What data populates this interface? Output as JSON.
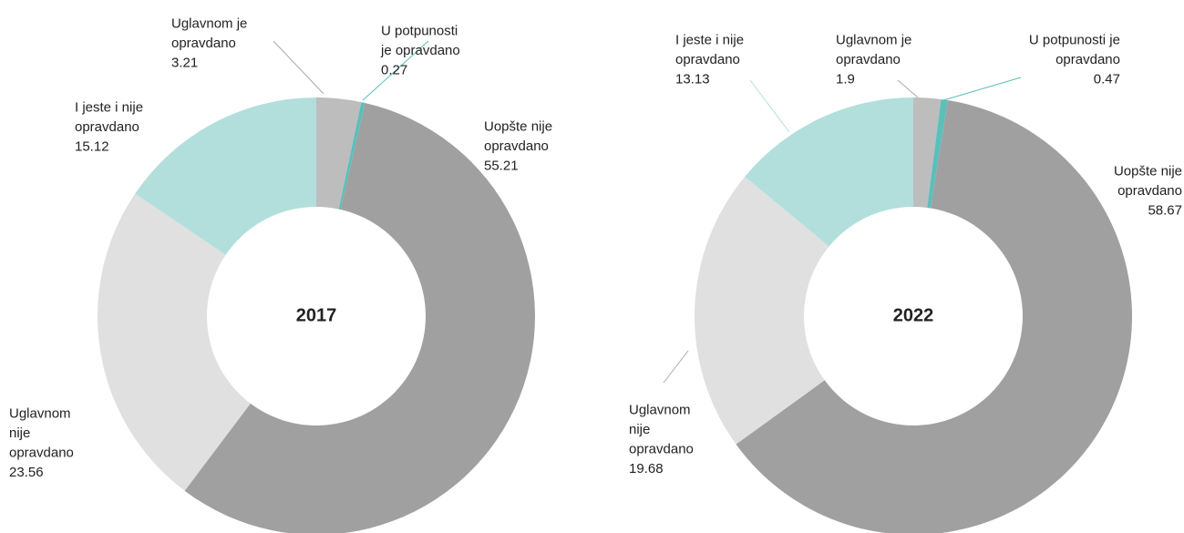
{
  "chart_data": [
    {
      "type": "donut",
      "title": "2017",
      "categories": [
        [
          "Uglavnom je",
          "opravdano"
        ],
        [
          "U potpunosti",
          "je opravdano"
        ],
        [
          "Uopšte nije",
          "opravdano"
        ],
        [
          "Uglavnom",
          "nije",
          "opravdano"
        ],
        [
          "I jeste i nije",
          "opravdano"
        ]
      ],
      "values": [
        3.21,
        0.27,
        55.21,
        23.56,
        15.12
      ],
      "colors": [
        "#bdbdbd",
        "#5bbfba",
        "#a0a0a0",
        "#e0e0e0",
        "#b2dfdb"
      ]
    },
    {
      "type": "donut",
      "title": "2022",
      "categories": [
        [
          "Uglavnom je",
          "opravdano"
        ],
        [
          "U potpunosti je",
          "opravdano"
        ],
        [
          "Uopšte nije",
          "opravdano"
        ],
        [
          "Uglavnom",
          "nije",
          "opravdano"
        ],
        [
          "I jeste i nije",
          "opravdano"
        ]
      ],
      "values": [
        1.9,
        0.47,
        58.67,
        19.68,
        13.13
      ],
      "colors": [
        "#bdbdbd",
        "#5bbfba",
        "#a0a0a0",
        "#e0e0e0",
        "#b2dfdb"
      ]
    }
  ]
}
